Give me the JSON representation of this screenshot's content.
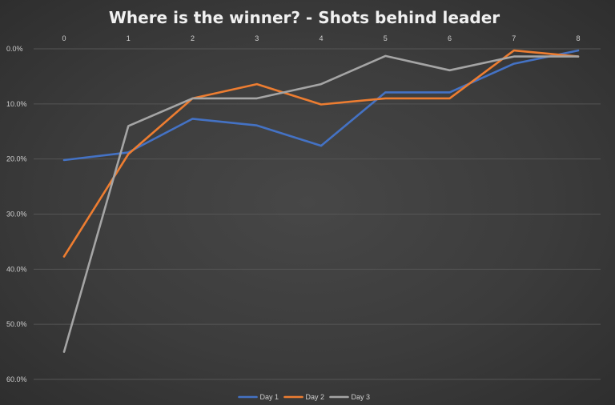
{
  "chart_data": {
    "type": "line",
    "title": "Where is the winner? - Shots behind leader",
    "x": [
      0,
      1,
      2,
      3,
      4,
      5,
      6,
      7,
      8
    ],
    "x_tick_labels": [
      "0",
      "1",
      "2",
      "3",
      "4",
      "5",
      "6",
      "7",
      "8"
    ],
    "x_axis_position": "top",
    "y_tick_labels": [
      "0.0%",
      "10.0%",
      "20.0%",
      "30.0%",
      "40.0%",
      "50.0%",
      "60.0%"
    ],
    "ylim": [
      0,
      60
    ],
    "y_reversed": true,
    "y_unit": "%",
    "grid": true,
    "legend_position": "bottom",
    "series": [
      {
        "name": "Day 1",
        "color": "#4472C4",
        "values": [
          20.2,
          18.8,
          12.7,
          13.9,
          17.6,
          7.9,
          7.9,
          2.7,
          0.3
        ]
      },
      {
        "name": "Day 2",
        "color": "#ED7D31",
        "values": [
          37.7,
          19.1,
          9.0,
          6.4,
          10.1,
          9.0,
          9.0,
          0.3,
          1.4
        ]
      },
      {
        "name": "Day 3",
        "color": "#A5A5A5",
        "values": [
          55.0,
          14.0,
          9.0,
          9.0,
          6.4,
          1.3,
          3.9,
          1.4,
          1.4
        ]
      }
    ]
  }
}
